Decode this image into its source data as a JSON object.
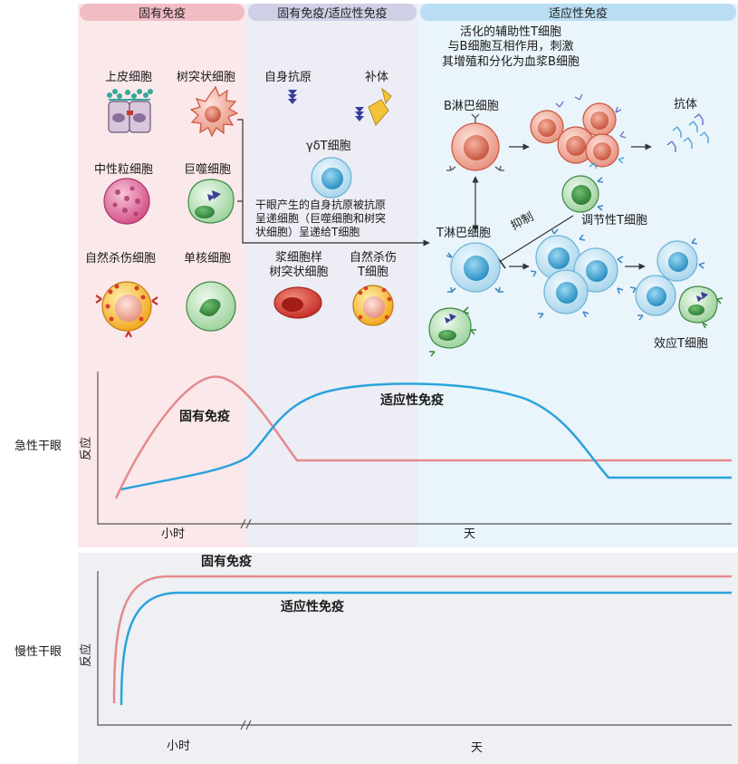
{
  "headers": {
    "innate": "固有免疫",
    "mixed": "固有免疫/适应性免疫",
    "adaptive": "适应性免疫"
  },
  "cells": {
    "epithelial": "上皮细胞",
    "dendritic": "树突状细胞",
    "neutrophil": "中性粒细胞",
    "macrophage": "巨噬细胞",
    "nk": "自然杀伤细胞",
    "monocyte": "单核细胞",
    "autoantigen": "自身抗原",
    "complement": "补体",
    "gdt": "γδT细胞",
    "plasmacytoid": "浆细胞样\n树突状细胞",
    "nkt": "自然杀伤\nT细胞",
    "b_cell": "B淋巴细胞",
    "antibody": "抗体",
    "t_cell": "T淋巴细胞",
    "treg": "调节性T细胞",
    "effector": "效应T细胞"
  },
  "notes": {
    "helper": "活化的辅助性T细胞\n与B细胞互相作用，刺激\n其增殖和分化为血浆B细胞",
    "presentation": "干眼产生的自身抗原被抗原\n呈递细胞（巨噬细胞和树突\n状细胞）呈递给T细胞",
    "suppress": "抑制"
  },
  "graphs": {
    "acute": {
      "row_label": "急性干眼",
      "ylabel": "反应",
      "innate_label": "固有免疫",
      "adaptive_label": "适应性免疫",
      "x_hours": "小时",
      "x_days": "天"
    },
    "chronic": {
      "row_label": "慢性干眼",
      "ylabel": "反应",
      "innate_label": "固有免疫",
      "adaptive_label": "适应性免疫",
      "x_hours": "小时",
      "x_days": "天"
    }
  },
  "colors": {
    "innate_curve": "#e58a8e",
    "adaptive_curve": "#2aa3dc",
    "innate_bg": "#fbe8ea",
    "mixed_bg": "#ecedf5",
    "adaptive_bg": "#eaf4fb",
    "arrow": "#3a3f99"
  },
  "icons": [
    "epithelial-cell-icon",
    "dendritic-cell-icon",
    "neutrophil-icon",
    "macrophage-icon",
    "nk-cell-icon",
    "monocyte-icon",
    "autoantigen-arrow-icon",
    "complement-icon",
    "gamma-delta-t-cell-icon",
    "plasmacytoid-dc-icon",
    "nkt-cell-icon",
    "b-cell-icon",
    "plasma-cell-icon",
    "antibody-icon",
    "t-cell-icon",
    "treg-icon",
    "effector-t-cell-icon"
  ]
}
